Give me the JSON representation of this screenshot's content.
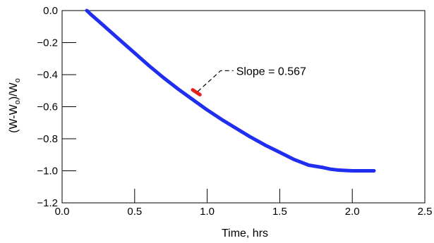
{
  "chart_data": {
    "type": "line",
    "title": "",
    "xlabel": "Time, hrs",
    "ylabel": "(W-Wo)/Wo",
    "ylabel_parts": {
      "pre1": "(W-W",
      "sub1": "o",
      "mid": ")/W",
      "sub2": "o"
    },
    "xlim": [
      0.0,
      2.5
    ],
    "ylim": [
      -1.2,
      0.0
    ],
    "x_ticks": [
      "0.0",
      "0.5",
      "1.0",
      "1.5",
      "2.0",
      "2.5"
    ],
    "y_ticks": [
      "0.0",
      "-0.2",
      "-0.4",
      "-0.6",
      "-0.8",
      "-1.0",
      "-1.2"
    ],
    "grid": false,
    "series": [
      {
        "color": "#1f2ef0",
        "x": [
          0.17,
          0.2,
          0.25,
          0.3,
          0.4,
          0.5,
          0.6,
          0.7,
          0.8,
          0.9,
          1.0,
          1.1,
          1.2,
          1.3,
          1.4,
          1.5,
          1.6,
          1.7,
          1.8,
          1.85,
          1.9,
          1.95,
          2.0,
          2.05,
          2.1,
          2.15
        ],
        "y": [
          0.0,
          -0.025,
          -0.065,
          -0.105,
          -0.185,
          -0.265,
          -0.345,
          -0.42,
          -0.49,
          -0.555,
          -0.62,
          -0.68,
          -0.735,
          -0.79,
          -0.84,
          -0.885,
          -0.93,
          -0.965,
          -0.98,
          -0.99,
          -0.995,
          -0.998,
          -1.0,
          -1.0,
          -1.0,
          -1.0
        ]
      },
      {
        "color": "#e8201c",
        "x": [
          0.9,
          0.95
        ],
        "y": [
          -0.495,
          -0.525
        ]
      }
    ],
    "annotation": {
      "text": "Slope = 0.567",
      "point": [
        0.935,
        -0.505
      ],
      "text_pos": [
        1.2,
        -0.375
      ]
    }
  }
}
